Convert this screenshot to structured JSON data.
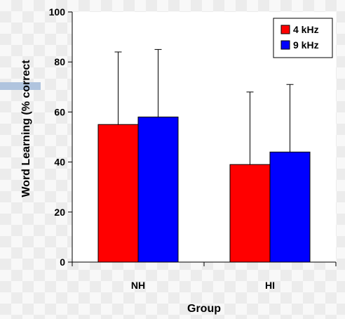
{
  "chart_data": {
    "type": "bar",
    "categories": [
      "NH",
      "HI"
    ],
    "series": [
      {
        "name": "4 kHz",
        "values": [
          55,
          39
        ],
        "error_upper": [
          84,
          68
        ],
        "color": "#ff0000"
      },
      {
        "name": "9 kHz",
        "values": [
          58,
          44
        ],
        "error_upper": [
          85,
          71
        ],
        "color": "#0000ff"
      }
    ],
    "xlabel": "Group",
    "ylabel": "Word Learning (% correct",
    "ylim": [
      0,
      100
    ],
    "yticks": [
      0,
      20,
      40,
      60,
      80,
      100
    ],
    "legend_position": "top-right",
    "grid": false,
    "background": "checkered"
  }
}
